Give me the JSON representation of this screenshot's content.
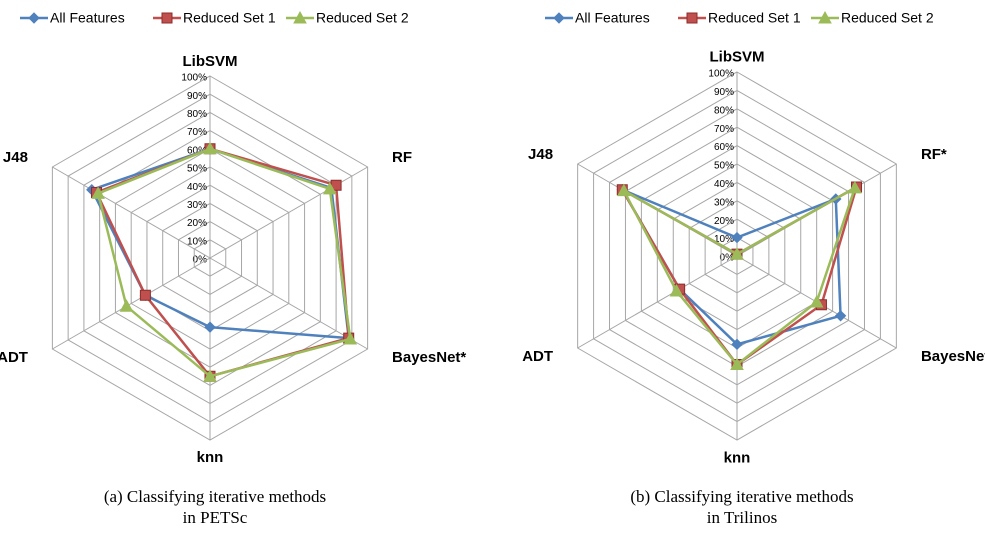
{
  "chart_data": [
    {
      "type": "radar",
      "categories": [
        "LibSVM",
        "RF",
        "BayesNet*",
        "knn",
        "ADT",
        "J48"
      ],
      "series": [
        {
          "name": "All Features",
          "color": "#4f81bd",
          "marker": "diamond",
          "values": [
            60,
            77,
            88,
            38,
            41,
            75
          ]
        },
        {
          "name": "Reduced Set 1",
          "color": "#c0504d",
          "marker": "square",
          "values": [
            60,
            80,
            88,
            65,
            41,
            72
          ]
        },
        {
          "name": "Reduced Set 2",
          "color": "#9bbb59",
          "marker": "triangle",
          "values": [
            60,
            76,
            89,
            65,
            53,
            71
          ]
        }
      ],
      "ylim": [
        0,
        100
      ],
      "yticks": [
        {
          "value": 0,
          "label": "0%"
        },
        {
          "value": 10,
          "label": "10%"
        },
        {
          "value": 20,
          "label": "20%"
        },
        {
          "value": 30,
          "label": "30%"
        },
        {
          "value": 40,
          "label": "40%"
        },
        {
          "value": 50,
          "label": "50%"
        },
        {
          "value": 60,
          "label": "60%"
        },
        {
          "value": 70,
          "label": "70%"
        },
        {
          "value": 80,
          "label": "80%"
        },
        {
          "value": 90,
          "label": "90%"
        },
        {
          "value": 100,
          "label": "100%"
        }
      ],
      "caption": [
        "(a) Classifying iterative methods",
        "in PETSc"
      ]
    },
    {
      "type": "radar",
      "categories": [
        "LibSVM",
        "RF*",
        "BayesNet",
        "knn",
        "ADT",
        "J48"
      ],
      "series": [
        {
          "name": "All Features",
          "color": "#4f81bd",
          "marker": "diamond",
          "values": [
            10,
            62,
            65,
            48,
            36,
            72
          ]
        },
        {
          "name": "Reduced Set 1",
          "color": "#c0504d",
          "marker": "square",
          "values": [
            1,
            75,
            53,
            59,
            36,
            72
          ]
        },
        {
          "name": "Reduced Set 2",
          "color": "#9bbb59",
          "marker": "triangle",
          "values": [
            1,
            74,
            50,
            59,
            38,
            71
          ]
        }
      ],
      "ylim": [
        0,
        100
      ],
      "yticks": [
        {
          "value": 0,
          "label": "0%"
        },
        {
          "value": 10,
          "label": "10%"
        },
        {
          "value": 20,
          "label": "20%"
        },
        {
          "value": 30,
          "label": "30%"
        },
        {
          "value": 40,
          "label": "40%"
        },
        {
          "value": 50,
          "label": "50%"
        },
        {
          "value": 60,
          "label": "60%"
        },
        {
          "value": 70,
          "label": "70%"
        },
        {
          "value": 80,
          "label": "80%"
        },
        {
          "value": 90,
          "label": "90%"
        },
        {
          "value": 100,
          "label": "100%"
        }
      ],
      "caption": [
        "(b) Classifying iterative methods",
        "in Trilinos"
      ]
    }
  ]
}
